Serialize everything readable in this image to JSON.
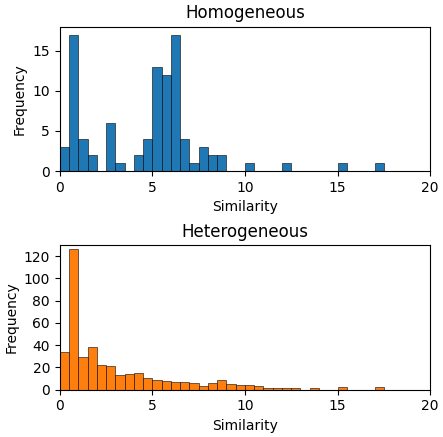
{
  "chart_data": [
    {
      "type": "histogram",
      "title": "Homogeneous",
      "x_label": "Similarity",
      "y_label": "Frequency",
      "bins": [
        0,
        0.5,
        1,
        1.5,
        2,
        2.5,
        3,
        3.5,
        4,
        4.5,
        5,
        5.5,
        6,
        6.5,
        7,
        7.5,
        8,
        8.5,
        9,
        9.5,
        10,
        10.5,
        11,
        11.5,
        12,
        12.5,
        13,
        13.5,
        14,
        14.5,
        15,
        15.5,
        16,
        16.5,
        17,
        17.5,
        18,
        18.5,
        19,
        19.5,
        20
      ],
      "values": [
        3,
        17,
        4,
        2,
        0,
        6,
        1,
        0,
        2,
        4,
        13,
        12,
        17,
        4,
        1,
        3,
        2,
        2,
        0,
        0,
        1,
        0,
        0,
        0,
        1,
        0,
        0,
        0,
        0,
        0,
        1,
        0,
        0,
        0,
        1,
        0,
        0,
        0,
        0,
        0
      ],
      "xlim": [
        0,
        20
      ],
      "xticks": [
        0,
        5,
        10,
        15,
        20
      ],
      "ylim": [
        0,
        18
      ],
      "yticks": [
        0,
        5,
        10,
        15
      ]
    },
    {
      "type": "histogram",
      "title": "Heterogeneous",
      "x_label": "Similarity",
      "y_label": "Frequency",
      "bins": [
        0,
        0.5,
        1,
        1.5,
        2,
        2.5,
        3,
        3.5,
        4,
        4.5,
        5,
        5.5,
        6,
        6.5,
        7,
        7.5,
        8,
        8.5,
        9,
        9.5,
        10,
        10.5,
        11,
        11.5,
        12,
        12.5,
        13,
        13.5,
        14,
        14.5,
        15,
        15.5,
        16,
        16.5,
        17,
        17.5,
        18,
        18.5,
        19,
        19.5,
        20
      ],
      "values": [
        34,
        126,
        29,
        38,
        22,
        21,
        13,
        14,
        15,
        10,
        9,
        8,
        7,
        7,
        6,
        3,
        6,
        9,
        5,
        4,
        4,
        3,
        1,
        1,
        1,
        1,
        0,
        1,
        0,
        0,
        2,
        0,
        0,
        0,
        2,
        0,
        0,
        0,
        0,
        0
      ],
      "xlim": [
        0,
        20
      ],
      "xticks": [
        0,
        5,
        10,
        15,
        20
      ],
      "ylim": [
        0,
        130
      ],
      "yticks": [
        0,
        20,
        40,
        60,
        80,
        100,
        120
      ]
    }
  ]
}
